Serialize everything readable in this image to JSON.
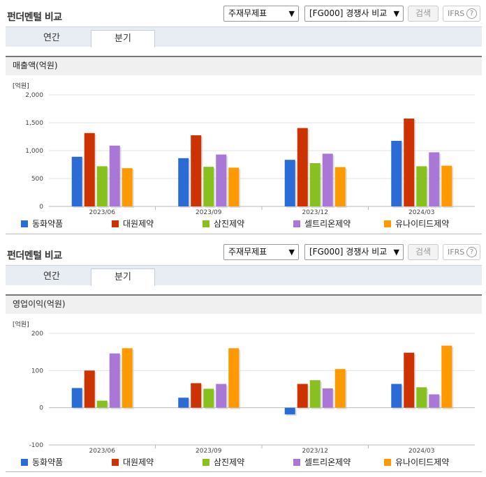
{
  "panels": [
    {
      "title": "펀더멘털 비교",
      "select_main": "주재무제표",
      "select_compare": "[FG000] 경쟁사 비교",
      "search_label": "검색",
      "ifrs_label": "IFRS",
      "help_glyph": "?",
      "tabs": [
        "연간",
        "분기"
      ],
      "active_tab": "분기",
      "chart_title": "매출액(억원)",
      "unit_label": "[억원]"
    },
    {
      "title": "펀더멘털 비교",
      "select_main": "주재무제표",
      "select_compare": "[FG000] 경쟁사 비교",
      "search_label": "검색",
      "ifrs_label": "IFRS",
      "help_glyph": "?",
      "tabs": [
        "연간",
        "분기"
      ],
      "active_tab": "분기",
      "chart_title": "영업이익(억원)",
      "unit_label": "[억원]"
    }
  ],
  "colors": {
    "동화약품": "#2a6bd6",
    "대원제약": "#cc3300",
    "삼진제약": "#88c020",
    "셀트리온제약": "#a978d6",
    "유나이티드제약": "#ff9900"
  },
  "chart_data": [
    {
      "type": "bar",
      "title": "매출액(억원)",
      "ylabel": "[억원]",
      "categories": [
        "2023/06",
        "2023/09",
        "2023/12",
        "2024/03"
      ],
      "ylim": [
        0,
        2000
      ],
      "yticks": [
        0,
        500,
        1000,
        1500,
        2000
      ],
      "ytick_labels": [
        "0",
        "500",
        "1,000",
        "1,500",
        "2,000"
      ],
      "grid": true,
      "legend": "bottom",
      "series": [
        {
          "name": "동화약품",
          "values": [
            890,
            865,
            835,
            1175
          ]
        },
        {
          "name": "대원제약",
          "values": [
            1315,
            1275,
            1405,
            1575
          ]
        },
        {
          "name": "삼진제약",
          "values": [
            720,
            710,
            775,
            720
          ]
        },
        {
          "name": "셀트리온제약",
          "values": [
            1090,
            930,
            945,
            970
          ]
        },
        {
          "name": "유나이티드제약",
          "values": [
            685,
            695,
            705,
            730
          ]
        }
      ]
    },
    {
      "type": "bar",
      "title": "영업이익(억원)",
      "ylabel": "[억원]",
      "categories": [
        "2023/06",
        "2023/09",
        "2023/12",
        "2024/03"
      ],
      "ylim": [
        -100,
        200
      ],
      "yticks": [
        -100,
        0,
        100,
        200
      ],
      "ytick_labels": [
        "-100",
        "0",
        "100",
        "200"
      ],
      "grid": true,
      "legend": "bottom",
      "series": [
        {
          "name": "동화약품",
          "values": [
            53,
            27,
            -18,
            64
          ]
        },
        {
          "name": "대원제약",
          "values": [
            100,
            66,
            64,
            148
          ]
        },
        {
          "name": "삼진제약",
          "values": [
            19,
            51,
            74,
            55
          ]
        },
        {
          "name": "셀트리온제약",
          "values": [
            146,
            64,
            52,
            36
          ]
        },
        {
          "name": "유나이티드제약",
          "values": [
            160,
            160,
            104,
            167
          ]
        }
      ]
    }
  ]
}
